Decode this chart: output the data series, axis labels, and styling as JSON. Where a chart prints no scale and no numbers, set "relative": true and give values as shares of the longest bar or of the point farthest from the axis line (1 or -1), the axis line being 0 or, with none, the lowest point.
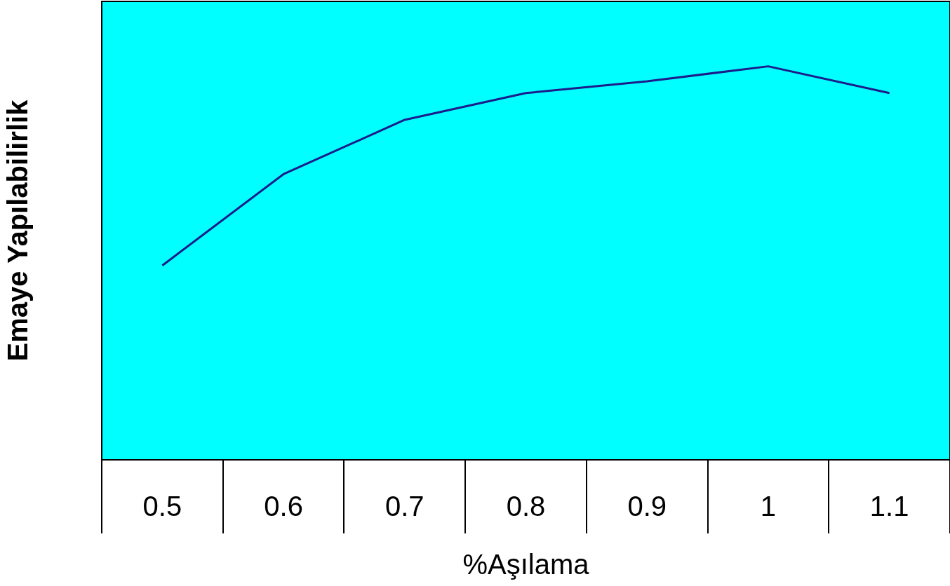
{
  "chart_data": {
    "type": "line",
    "xlabel": "%Aşılama",
    "ylabel": "Emaye Yapılabilirlik",
    "categories": [
      "0.5",
      "0.6",
      "0.7",
      "0.8",
      "0.9",
      "1",
      "1.1"
    ],
    "series": [
      {
        "color": "#1c1c8c",
        "values": [
          0.494,
          0.726,
          0.864,
          0.932,
          0.962,
          1,
          0.932
        ]
      }
    ],
    "relative": true,
    "grid": false,
    "legend": false,
    "marker": "none",
    "line_style": "solid"
  }
}
